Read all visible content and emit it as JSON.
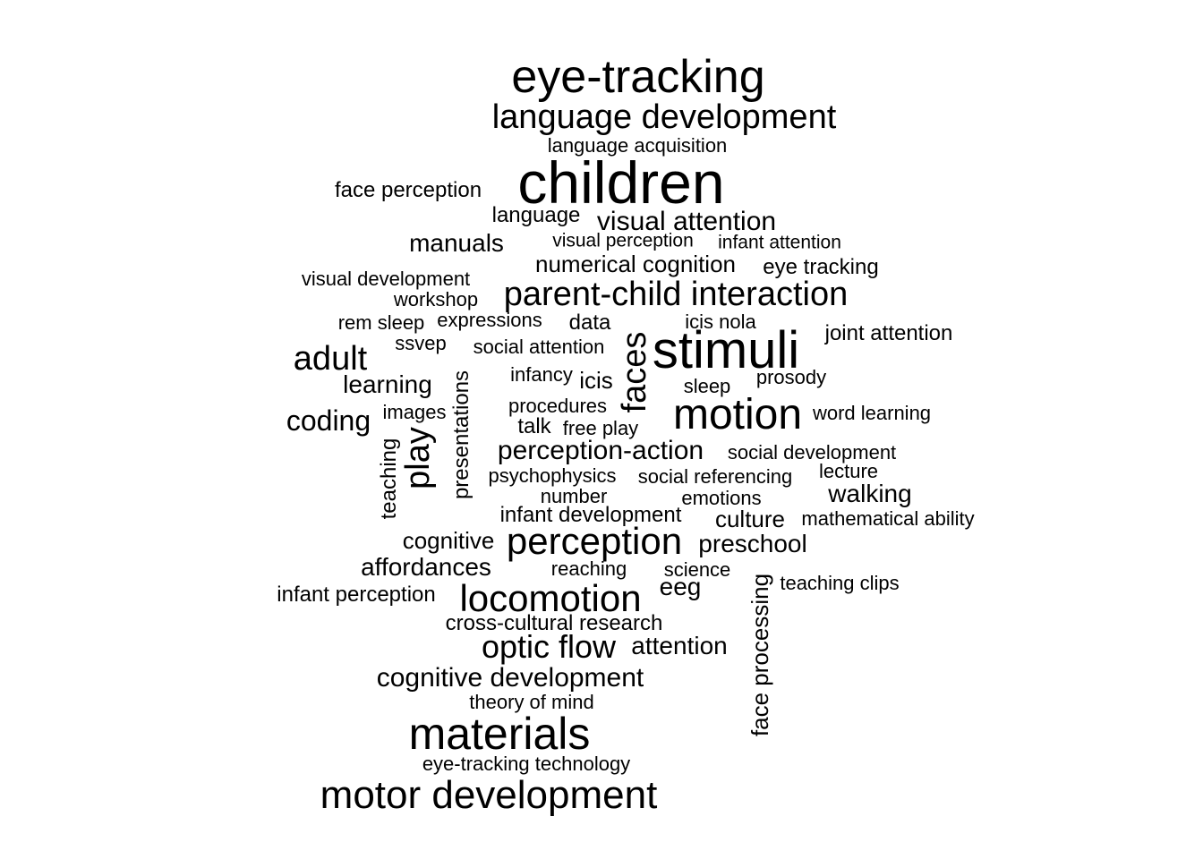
{
  "colors": {
    "background": "#ffffff",
    "text": "#000000"
  },
  "words": [
    "eye-tracking",
    "language development",
    "language acquisition",
    "children",
    "face perception",
    "language",
    "visual attention",
    "manuals",
    "visual perception",
    "infant attention",
    "numerical cognition",
    "eye tracking",
    "visual development",
    "workshop",
    "parent-child interaction",
    "rem sleep",
    "expressions",
    "data",
    "icis nola",
    "joint attention",
    "ssvep",
    "social attention",
    "stimuli",
    "faces",
    "adult",
    "infancy",
    "icis",
    "prosody",
    "learning",
    "sleep",
    "presentations",
    "procedures",
    "motion",
    "images",
    "word learning",
    "coding",
    "talk",
    "free play",
    "play",
    "teaching",
    "perception-action",
    "social development",
    "psychophysics",
    "social referencing",
    "lecture",
    "number",
    "emotions",
    "walking",
    "infant development",
    "culture",
    "mathematical ability",
    "cognitive",
    "perception",
    "preschool",
    "affordances",
    "reaching",
    "science",
    "face processing",
    "teaching clips",
    "eeg",
    "infant perception",
    "locomotion",
    "cross-cultural research",
    "optic flow",
    "attention",
    "cognitive development",
    "theory of mind",
    "materials",
    "eye-tracking technology",
    "motor development"
  ]
}
